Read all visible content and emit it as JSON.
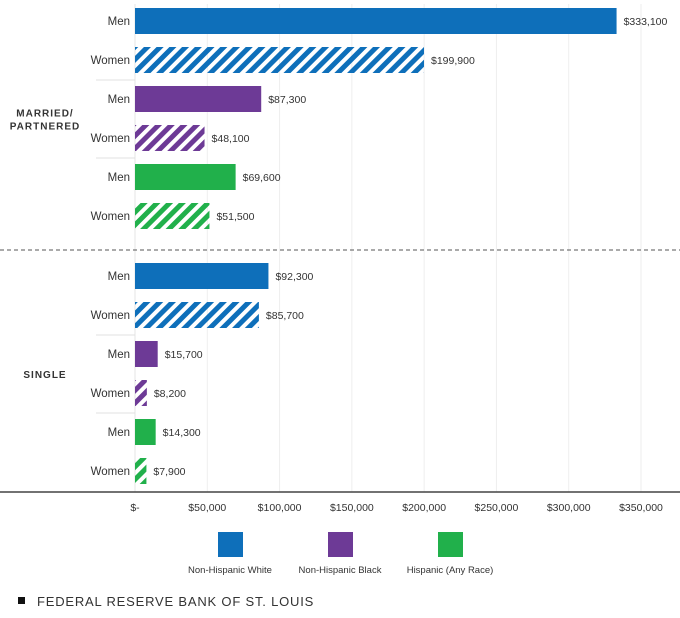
{
  "chart_data": {
    "type": "bar",
    "orientation": "horizontal",
    "xlim": [
      0,
      350000
    ],
    "x_ticks": [
      0,
      50000,
      100000,
      150000,
      200000,
      250000,
      300000,
      350000
    ],
    "x_tick_labels": [
      "$-",
      "$50,000",
      "$100,000",
      "$150,000",
      "$200,000",
      "$250,000",
      "$300,000",
      "$350,000"
    ],
    "grid": true,
    "legend_position": "bottom",
    "groups": [
      {
        "label": "MARRIED/ PARTNERED",
        "label_lines": [
          "MARRIED/",
          "PARTNERED"
        ],
        "bars": [
          {
            "label": "Men",
            "series": "Non-Hispanic White",
            "value": 333100,
            "value_label": "$333,100",
            "hatched": false
          },
          {
            "label": "Women",
            "series": "Non-Hispanic White",
            "value": 199900,
            "value_label": "$199,900",
            "hatched": true
          },
          {
            "label": "Men",
            "series": "Non-Hispanic Black",
            "value": 87300,
            "value_label": "$87,300",
            "hatched": false
          },
          {
            "label": "Women",
            "series": "Non-Hispanic Black",
            "value": 48100,
            "value_label": "$48,100",
            "hatched": true
          },
          {
            "label": "Men",
            "series": "Hispanic (Any Race)",
            "value": 69600,
            "value_label": "$69,600",
            "hatched": false
          },
          {
            "label": "Women",
            "series": "Hispanic (Any Race)",
            "value": 51500,
            "value_label": "$51,500",
            "hatched": true
          }
        ]
      },
      {
        "label": "SINGLE",
        "label_lines": [
          "SINGLE"
        ],
        "bars": [
          {
            "label": "Men",
            "series": "Non-Hispanic White",
            "value": 92300,
            "value_label": "$92,300",
            "hatched": false
          },
          {
            "label": "Women",
            "series": "Non-Hispanic White",
            "value": 85700,
            "value_label": "$85,700",
            "hatched": true
          },
          {
            "label": "Men",
            "series": "Non-Hispanic Black",
            "value": 15700,
            "value_label": "$15,700",
            "hatched": false
          },
          {
            "label": "Women",
            "series": "Non-Hispanic Black",
            "value": 8200,
            "value_label": "$8,200",
            "hatched": true
          },
          {
            "label": "Men",
            "series": "Hispanic (Any Race)",
            "value": 14300,
            "value_label": "$14,300",
            "hatched": false
          },
          {
            "label": "Women",
            "series": "Hispanic (Any Race)",
            "value": 7900,
            "value_label": "$7,900",
            "hatched": true
          }
        ]
      }
    ],
    "legend": [
      {
        "name": "Non-Hispanic White",
        "color": "#0e6fba"
      },
      {
        "name": "Non-Hispanic Black",
        "color": "#6d3a96"
      },
      {
        "name": "Hispanic (Any Race)",
        "color": "#21b04b"
      }
    ]
  },
  "footer": {
    "source": "FEDERAL RESERVE BANK OF ST. LOUIS"
  }
}
